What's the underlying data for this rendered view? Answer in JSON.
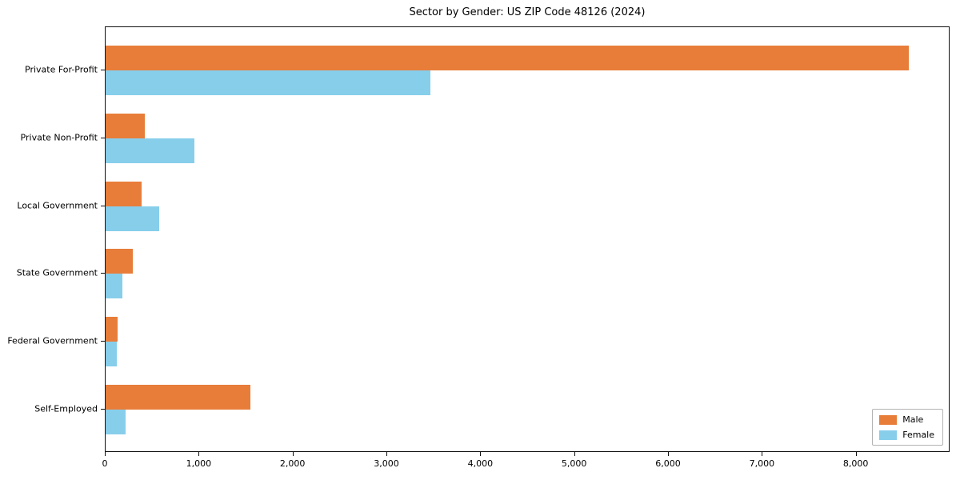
{
  "title": "Sector by Gender: US ZIP Code 48126 (2024)",
  "chart_data": {
    "type": "bar",
    "orientation": "horizontal",
    "title": "Sector by Gender: US ZIP Code 48126 (2024)",
    "xlabel": "",
    "ylabel": "",
    "categories": [
      "Private For-Profit",
      "Private Non-Profit",
      "Local Government",
      "State Government",
      "Federal Government",
      "Self-Employed"
    ],
    "series": [
      {
        "name": "Male",
        "color": "#e87d3a",
        "values": [
          8560,
          420,
          380,
          290,
          130,
          1540
        ]
      },
      {
        "name": "Female",
        "color": "#87ceeb",
        "values": [
          3460,
          950,
          570,
          180,
          120,
          210
        ]
      }
    ],
    "xlim": [
      0,
      9000
    ],
    "xticks": [
      0,
      1000,
      2000,
      3000,
      4000,
      5000,
      6000,
      7000,
      8000
    ],
    "grid": false,
    "legend_position": "lower right"
  }
}
